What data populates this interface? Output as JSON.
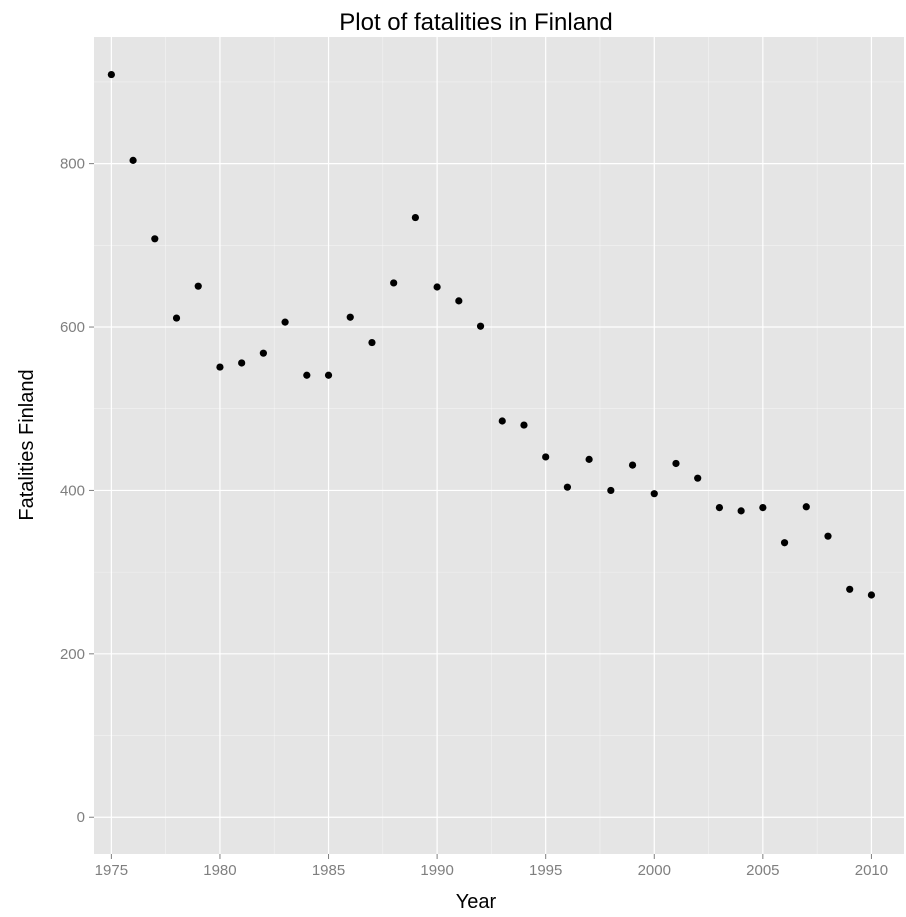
{
  "chart_data": {
    "type": "scatter",
    "title": "Plot of fatalities in Finland",
    "xlabel": "Year",
    "ylabel": "Fatalities Finland",
    "xlim": [
      1974.2,
      2011.5
    ],
    "ylim": [
      -45,
      955
    ],
    "xticks": [
      1975,
      1980,
      1985,
      1990,
      1995,
      2000,
      2005,
      2010
    ],
    "yticks": [
      0,
      200,
      400,
      600,
      800
    ],
    "grid": true,
    "colors": {
      "panel": "#e5e5e5",
      "grid": "#ffffff",
      "point": "#000000",
      "tick_text": "#7f7f7f"
    },
    "series": [
      {
        "x": [
          1975,
          1976,
          1977,
          1978,
          1979,
          1980,
          1981,
          1982,
          1983,
          1984,
          1985,
          1986,
          1987,
          1988,
          1989,
          1990,
          1991,
          1992,
          1993,
          1994,
          1995,
          1996,
          1997,
          1998,
          1999,
          2000,
          2001,
          2002,
          2003,
          2004,
          2005,
          2006,
          2007,
          2008,
          2009,
          2010
        ],
        "y": [
          909,
          804,
          708,
          611,
          650,
          551,
          556,
          568,
          606,
          541,
          541,
          612,
          581,
          654,
          734,
          649,
          632,
          601,
          485,
          480,
          441,
          404,
          438,
          400,
          431,
          396,
          433,
          415,
          379,
          375,
          379,
          336,
          380,
          344,
          279,
          272
        ]
      }
    ]
  }
}
